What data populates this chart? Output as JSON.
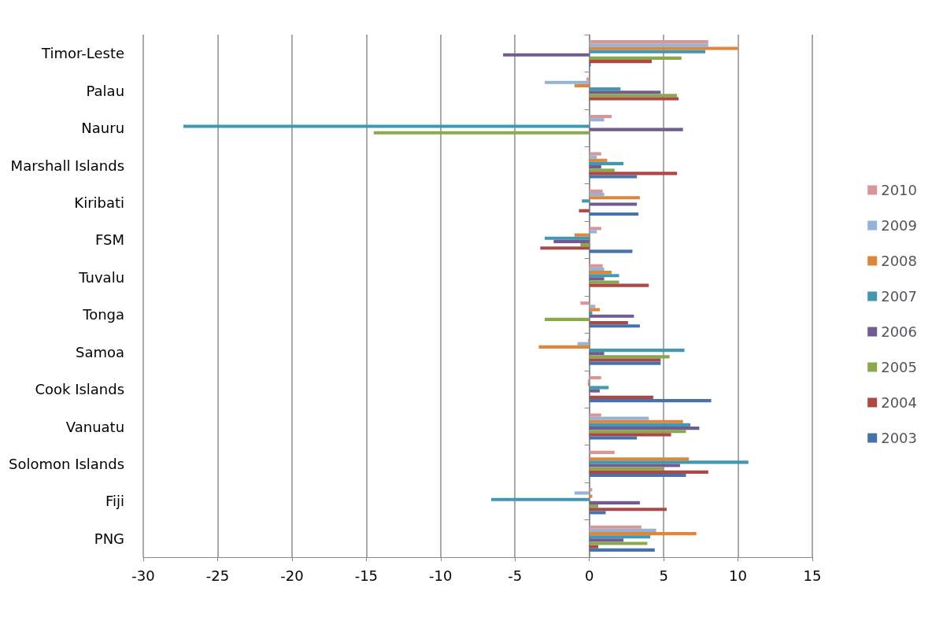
{
  "chart_data": {
    "type": "bar",
    "orientation": "horizontal",
    "categories": [
      "Timor-Leste",
      "Palau",
      "Nauru",
      "Marshall Islands",
      "Kiribati",
      "FSM",
      "Tuvalu",
      "Tonga",
      "Samoa",
      "Cook Islands",
      "Vanuatu",
      "Solomon Islands",
      "Fiji",
      "PNG"
    ],
    "series": [
      {
        "name": "2010",
        "color": "#d99694",
        "values": [
          8.0,
          -0.2,
          1.5,
          0.8,
          0.9,
          0.8,
          0.9,
          -0.6,
          -0.1,
          0.8,
          0.8,
          1.7,
          0.2,
          3.5
        ]
      },
      {
        "name": "2009",
        "color": "#95b3d7",
        "values": [
          8.0,
          -3.0,
          1.0,
          0.5,
          1.0,
          0.5,
          1.0,
          0.4,
          -0.8,
          -0.1,
          4.0,
          0,
          -1.0,
          4.5
        ]
      },
      {
        "name": "2008",
        "color": "#e0863b",
        "values": [
          10.0,
          -1.0,
          0,
          1.2,
          3.4,
          -1.0,
          1.5,
          0.7,
          -3.4,
          -0.1,
          6.3,
          6.7,
          0.2,
          7.2
        ]
      },
      {
        "name": "2007",
        "color": "#4198af",
        "values": [
          7.8,
          2.1,
          -27.3,
          2.3,
          -0.5,
          -3.0,
          2.0,
          0.2,
          6.4,
          1.3,
          6.8,
          10.7,
          -6.6,
          4.1
        ]
      },
      {
        "name": "2006",
        "color": "#725a93",
        "values": [
          -5.8,
          4.8,
          6.3,
          0.8,
          3.2,
          -2.4,
          1.0,
          3.0,
          1.0,
          0.7,
          7.4,
          6.1,
          3.4,
          2.3
        ]
      },
      {
        "name": "2005",
        "color": "#8ba84f",
        "values": [
          6.2,
          5.9,
          -14.5,
          1.7,
          0,
          -0.6,
          2.0,
          -3.0,
          5.4,
          0,
          6.5,
          5.0,
          0.6,
          3.9
        ]
      },
      {
        "name": "2004",
        "color": "#ac4845",
        "values": [
          4.2,
          6.0,
          0,
          5.9,
          -0.7,
          -3.3,
          4.0,
          2.6,
          4.8,
          4.3,
          5.5,
          8.0,
          5.2,
          0.6
        ]
      },
      {
        "name": "2003",
        "color": "#4573aa",
        "values": [
          0.1,
          0,
          0,
          3.2,
          3.3,
          2.9,
          0,
          3.4,
          4.8,
          8.2,
          3.2,
          6.5,
          1.1,
          4.4
        ]
      }
    ],
    "xlim": [
      -30,
      15
    ],
    "xticks": [
      -30,
      -25,
      -20,
      -15,
      -10,
      -5,
      0,
      5,
      10,
      15
    ],
    "grid": "x",
    "legend": "right"
  }
}
